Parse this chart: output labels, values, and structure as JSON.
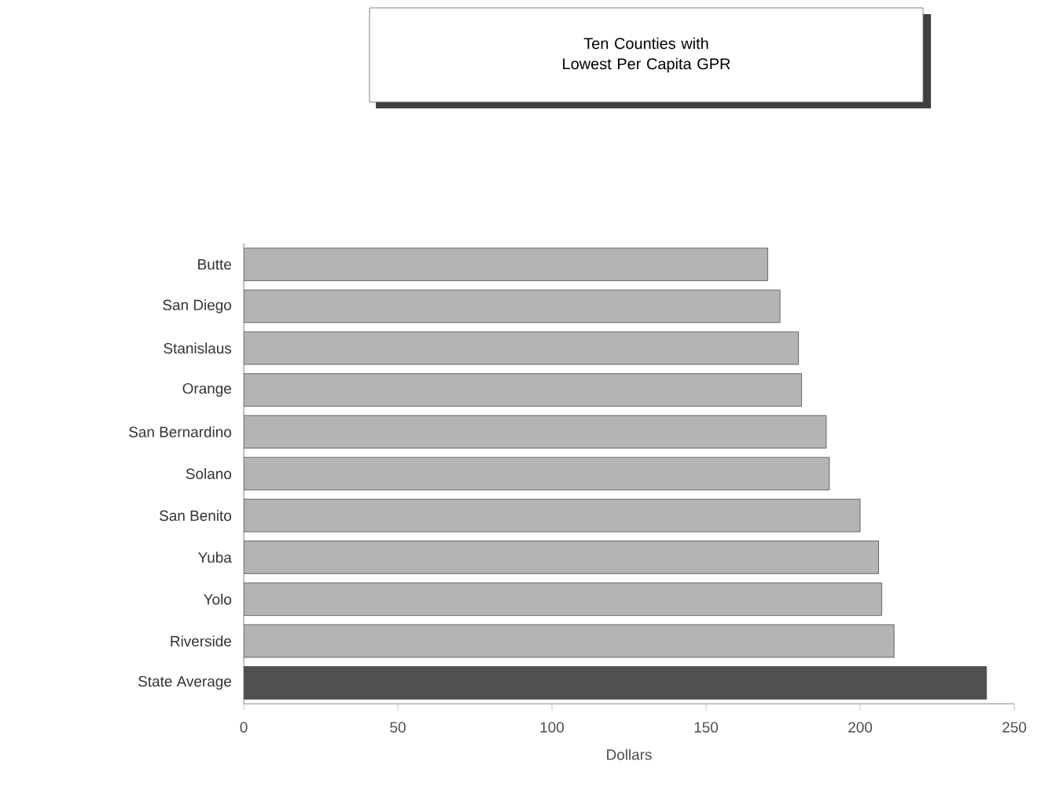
{
  "chart_data": {
    "type": "bar",
    "orientation": "horizontal",
    "title": "Ten Counties with Lowest Per Capita GPR",
    "categories": [
      "Butte",
      "San Diego",
      "Stanislaus",
      "Orange",
      "San Bernardino",
      "Solano",
      "San Benito",
      "Yuba",
      "Yolo",
      "Riverside",
      "State Average"
    ],
    "values": [
      170,
      174,
      180,
      181,
      189,
      190,
      200,
      206,
      207,
      211,
      241
    ],
    "colors": [
      "#b4b4b4",
      "#b4b4b4",
      "#b4b4b4",
      "#b4b4b4",
      "#b4b4b4",
      "#b4b4b4",
      "#b4b4b4",
      "#b4b4b4",
      "#b4b4b4",
      "#b4b4b4",
      "#505050"
    ],
    "xlabel": "Dollars",
    "xlim": [
      0,
      250
    ],
    "xticks": [
      0,
      50,
      100,
      150,
      200,
      250
    ]
  }
}
